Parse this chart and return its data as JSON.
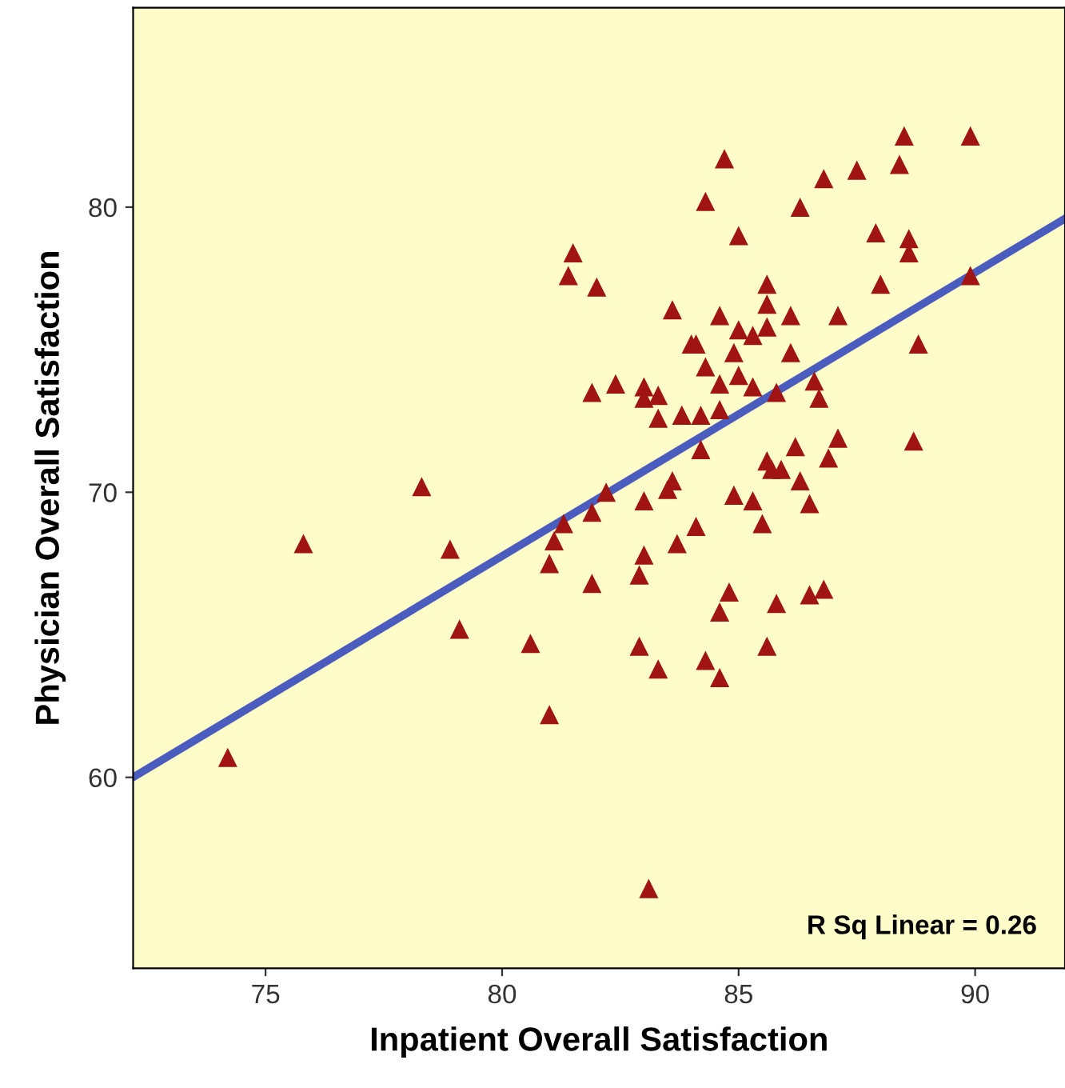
{
  "chart_data": {
    "type": "scatter",
    "xlabel": "Inpatient Overall Satisfaction",
    "ylabel": "Physician Overall Satisfaction",
    "annotations": [
      "R Sq Linear = 0.26"
    ],
    "xlim": [
      72.2,
      91.9
    ],
    "ylim": [
      53.3,
      87
    ],
    "xticks": [
      75,
      80,
      85,
      90
    ],
    "yticks": [
      60,
      70,
      80
    ],
    "grid": false,
    "legend": false,
    "series": [
      {
        "marker": "triangle",
        "color": "#a01414",
        "x": [
          74.2,
          75.8,
          78.3,
          78.9,
          79.1,
          80.6,
          81.0,
          81.5,
          81.4,
          82.0,
          83.6,
          81.9,
          82.4,
          83.0,
          83.0,
          83.3,
          83.3,
          83.8,
          82.2,
          81.9,
          81.3,
          81.1,
          81.0,
          83.0,
          83.6,
          83.5,
          83.7,
          83.0,
          82.9,
          81.9,
          82.9,
          83.3,
          83.1,
          84.1,
          84.1,
          84.7,
          84.3,
          85.0,
          86.3,
          86.8,
          87.5,
          88.4,
          88.5,
          89.9,
          87.9,
          88.6,
          88.6,
          88.0,
          89.9,
          85.6,
          85.6,
          86.1,
          87.1,
          84.6,
          85.0,
          85.3,
          85.6,
          84.0,
          84.9,
          86.1,
          88.8,
          84.3,
          84.6,
          85.0,
          85.3,
          85.8,
          86.6,
          86.7,
          83.8,
          84.2,
          84.6,
          84.2,
          87.1,
          86.9,
          88.7,
          86.2,
          85.6,
          85.7,
          85.9,
          86.3,
          86.5,
          84.9,
          85.3,
          85.5,
          84.8,
          84.6,
          85.8,
          86.5,
          86.8,
          85.6,
          84.3,
          84.6
        ],
        "values": [
          60.7,
          68.2,
          70.2,
          68.0,
          65.2,
          64.7,
          62.2,
          78.4,
          77.6,
          77.2,
          76.4,
          73.5,
          73.8,
          73.7,
          73.3,
          73.4,
          72.6,
          72.7,
          70.0,
          69.3,
          68.9,
          68.3,
          67.5,
          69.7,
          70.4,
          70.1,
          68.2,
          67.8,
          67.1,
          66.8,
          64.6,
          63.8,
          56.1,
          75.2,
          68.8,
          81.7,
          80.2,
          79.0,
          80.0,
          81.0,
          81.3,
          81.5,
          82.5,
          82.5,
          79.1,
          78.9,
          78.4,
          77.3,
          77.6,
          77.3,
          76.6,
          76.2,
          76.2,
          76.2,
          75.7,
          75.5,
          75.8,
          75.2,
          74.9,
          74.9,
          75.2,
          74.4,
          73.8,
          74.1,
          73.7,
          73.5,
          73.9,
          73.3,
          72.7,
          72.7,
          72.9,
          71.5,
          71.9,
          71.2,
          71.8,
          71.6,
          71.1,
          70.8,
          70.8,
          70.4,
          69.6,
          69.9,
          69.7,
          68.9,
          66.5,
          65.8,
          66.1,
          66.4,
          66.6,
          64.6,
          64.1,
          63.5
        ]
      },
      {
        "type": "line",
        "color": "#4a5cbd",
        "line_style": "solid",
        "x": [
          72.2,
          91.9
        ],
        "values": [
          60.0,
          79.6
        ]
      }
    ]
  }
}
